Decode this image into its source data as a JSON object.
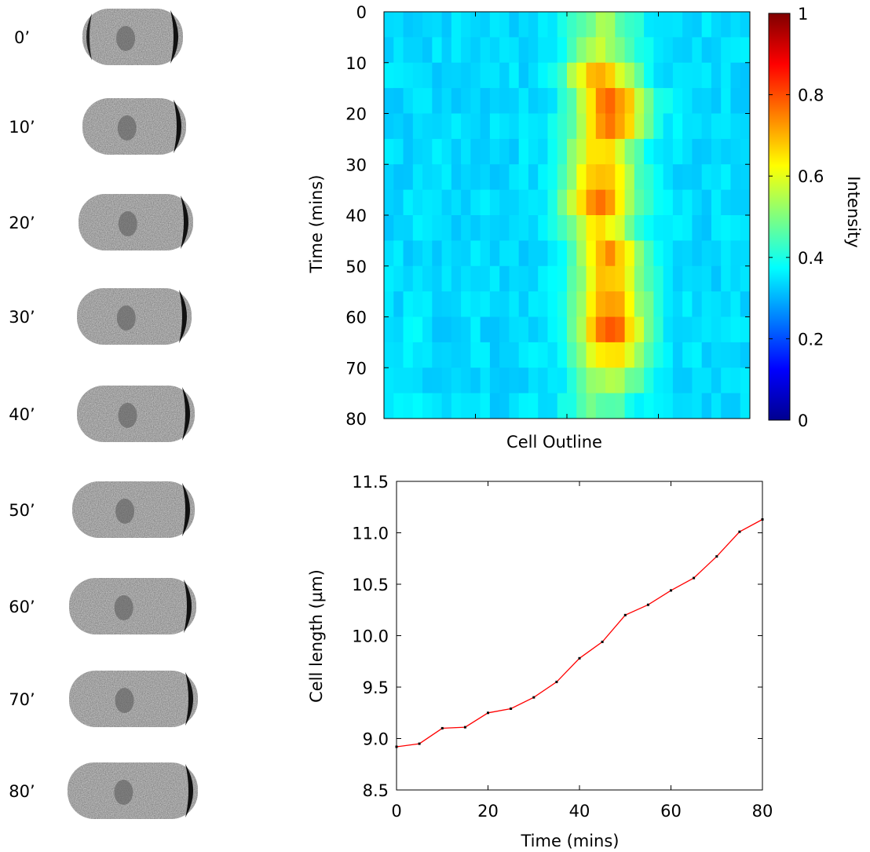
{
  "panels": {
    "timelapse": {
      "time_labels": [
        "0’",
        "10’",
        "20’",
        "30’",
        "40’",
        "50’",
        "60’",
        "70’",
        "80’"
      ]
    }
  },
  "chart_data": [
    {
      "type": "heatmap",
      "xlabel": "Cell Outline",
      "ylabel": "Time (mins)",
      "ylim": [
        0,
        80
      ],
      "yticks": [
        0,
        10,
        20,
        30,
        40,
        50,
        60,
        70,
        80
      ],
      "x_tick_labels_visible": false,
      "colorbar": {
        "label": "Intensity",
        "range": [
          0,
          1
        ],
        "ticks": [
          0,
          0.2,
          0.4,
          0.6,
          0.8,
          1
        ],
        "tick_labels": [
          "0",
          "0.2",
          "0.4",
          "0.6",
          "0.8",
          "1"
        ],
        "colormap": "jet"
      },
      "rows": 16,
      "cols": 38,
      "row_profile": {
        "peak_col": [
          22,
          22,
          22,
          23,
          23,
          22,
          22,
          22,
          22,
          23,
          23,
          23,
          23,
          23,
          23,
          22
        ],
        "peak_value": [
          0.52,
          0.55,
          0.7,
          0.78,
          0.74,
          0.66,
          0.7,
          0.76,
          0.66,
          0.72,
          0.7,
          0.74,
          0.78,
          0.66,
          0.55,
          0.48
        ],
        "background": 0.34
      }
    },
    {
      "type": "line",
      "xlabel": "Time (mins)",
      "ylabel": "Cell length (µm)",
      "xlim": [
        0,
        80
      ],
      "ylim": [
        8.5,
        11.5
      ],
      "xticks": [
        0,
        20,
        40,
        60,
        80
      ],
      "yticks": [
        8.5,
        9.0,
        9.5,
        10.0,
        10.5,
        11.0,
        11.5
      ],
      "ytick_labels": [
        "8.5",
        "9.0",
        "9.5",
        "10.0",
        "10.5",
        "11.0",
        "11.5"
      ],
      "series": [
        {
          "color": "#ff0000",
          "marker_color": "#000000",
          "x": [
            0,
            5,
            10,
            15,
            20,
            25,
            30,
            35,
            40,
            45,
            50,
            55,
            60,
            65,
            70,
            75,
            80
          ],
          "y": [
            8.92,
            8.95,
            9.1,
            9.11,
            9.25,
            9.29,
            9.4,
            9.55,
            9.78,
            9.94,
            10.2,
            10.3,
            10.44,
            10.56,
            10.77,
            11.01,
            11.13
          ]
        }
      ]
    }
  ]
}
